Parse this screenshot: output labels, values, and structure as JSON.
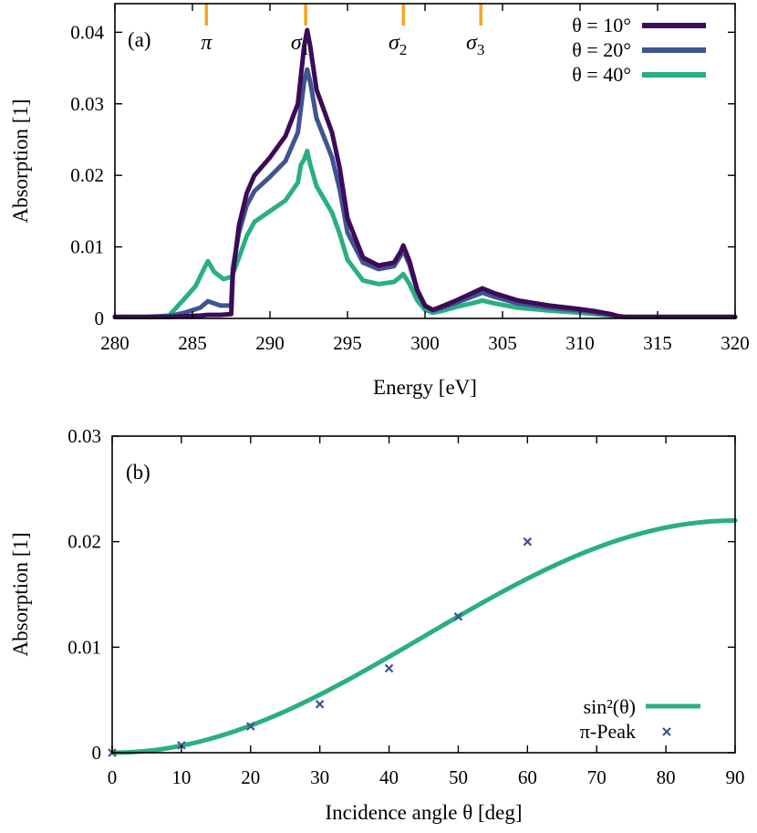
{
  "colors": {
    "theta_10": "#3d0b57",
    "theta_20": "#3f5490",
    "theta_40": "#2aaf82",
    "marker": "#f5a623",
    "pi_peak": "#3f5490"
  },
  "chart_data": [
    {
      "type": "line",
      "panel_label": "(a)",
      "xlabel": "Energy [eV]",
      "ylabel": "Absorption [1]",
      "xlim": [
        280,
        320
      ],
      "ylim": [
        0,
        0.044
      ],
      "x_ticks": [
        280,
        285,
        290,
        295,
        300,
        305,
        310,
        315,
        320
      ],
      "y_ticks": [
        0,
        0.01,
        0.02,
        0.03,
        0.04
      ],
      "y_tick_labels": [
        "0",
        "0.01",
        "0.02",
        "0.03",
        "0.04"
      ],
      "legend_position": "top-right",
      "markers": [
        {
          "label": "π",
          "sub": "",
          "x": 285.9
        },
        {
          "label": "σ",
          "sub": "1",
          "x": 292.3
        },
        {
          "label": "σ",
          "sub": "2",
          "x": 298.6
        },
        {
          "label": "σ",
          "sub": "3",
          "x": 303.6
        }
      ],
      "series": [
        {
          "name": "θ = 10°",
          "x": [
            280,
            282,
            283.5,
            284.5,
            285.5,
            286,
            286.8,
            287.5,
            287.6,
            288,
            288.5,
            289,
            290,
            291,
            291.8,
            292,
            292.2,
            292.4,
            292.6,
            293,
            294,
            294.5,
            295,
            296,
            297,
            298,
            298.4,
            298.6,
            299,
            299.5,
            300,
            300.5,
            301,
            302,
            303,
            303.7,
            304.5,
            306,
            308,
            310,
            311,
            312,
            312.5,
            313,
            316,
            320
          ],
          "y": [
            0.0002,
            0.0002,
            0.0002,
            0.0003,
            0.0004,
            0.0005,
            0.0005,
            0.0006,
            0.006,
            0.013,
            0.0175,
            0.02,
            0.0225,
            0.0255,
            0.03,
            0.034,
            0.038,
            0.0403,
            0.038,
            0.032,
            0.026,
            0.021,
            0.014,
            0.0085,
            0.0074,
            0.0078,
            0.0092,
            0.0102,
            0.008,
            0.004,
            0.0018,
            0.0012,
            0.0016,
            0.0025,
            0.0035,
            0.0042,
            0.0035,
            0.0025,
            0.0018,
            0.0013,
            0.001,
            0.0006,
            0.0003,
            0.0002,
            0.0002,
            0.0002
          ]
        },
        {
          "name": "θ = 20°",
          "x": [
            280,
            282,
            283.5,
            284.5,
            285.5,
            286,
            286.8,
            287.5,
            287.6,
            288,
            288.5,
            289,
            290,
            291,
            291.8,
            292,
            292.2,
            292.4,
            292.6,
            293,
            294,
            294.5,
            295,
            296,
            297,
            298,
            298.4,
            298.6,
            299,
            299.5,
            300,
            300.5,
            301,
            302,
            303,
            303.7,
            304.5,
            306,
            308,
            310,
            311,
            312,
            312.5,
            313,
            316,
            320
          ],
          "y": [
            0.0002,
            0.0002,
            0.0003,
            0.0008,
            0.0015,
            0.0024,
            0.0018,
            0.0018,
            0.007,
            0.012,
            0.0158,
            0.0178,
            0.0198,
            0.022,
            0.026,
            0.0295,
            0.033,
            0.0348,
            0.033,
            0.028,
            0.0225,
            0.018,
            0.012,
            0.0078,
            0.0069,
            0.0073,
            0.0087,
            0.0095,
            0.0075,
            0.0038,
            0.0017,
            0.0011,
            0.0014,
            0.0022,
            0.003,
            0.0036,
            0.003,
            0.0021,
            0.0015,
            0.0011,
            0.0008,
            0.0005,
            0.0003,
            0.0002,
            0.0002,
            0.0002
          ]
        },
        {
          "name": "θ = 40°",
          "x": [
            280,
            282,
            283.5,
            284.5,
            285.2,
            285.8,
            286,
            286.4,
            287,
            287.5,
            287.6,
            288,
            288.5,
            289,
            290,
            291,
            291.8,
            292,
            292.2,
            292.4,
            292.6,
            293,
            294,
            294.5,
            295,
            296,
            297,
            298,
            298.4,
            298.6,
            299,
            299.5,
            300,
            300.5,
            301,
            302,
            303,
            303.7,
            304.5,
            306,
            308,
            310,
            311,
            312,
            312.5,
            313,
            316,
            320
          ],
          "y": [
            0.0002,
            0.0002,
            0.0004,
            0.0028,
            0.0045,
            0.0072,
            0.008,
            0.0065,
            0.0055,
            0.0058,
            0.0062,
            0.0085,
            0.0115,
            0.0135,
            0.015,
            0.0165,
            0.019,
            0.0215,
            0.0222,
            0.0234,
            0.0215,
            0.0185,
            0.0148,
            0.0118,
            0.0082,
            0.0053,
            0.0048,
            0.0051,
            0.0058,
            0.0062,
            0.0048,
            0.0025,
            0.0012,
            0.0008,
            0.001,
            0.0016,
            0.0021,
            0.0025,
            0.0021,
            0.0015,
            0.0011,
            0.0008,
            0.0006,
            0.0004,
            0.0003,
            0.0002,
            0.0002,
            0.0002
          ]
        }
      ]
    },
    {
      "type": "line",
      "panel_label": "(b)",
      "xlabel": "Incidence angle θ [deg]",
      "ylabel": "Absorption [1]",
      "xlim": [
        0,
        90
      ],
      "ylim": [
        0,
        0.03
      ],
      "x_ticks": [
        0,
        10,
        20,
        30,
        40,
        50,
        60,
        70,
        80,
        90
      ],
      "y_ticks": [
        0,
        0.01,
        0.02,
        0.03
      ],
      "y_tick_labels": [
        "0",
        "0.01",
        "0.02",
        "0.03"
      ],
      "legend_position": "bottom-right",
      "fit": {
        "name": "sin²(θ)",
        "amplitude": 0.022
      },
      "points": {
        "name": "π-Peak",
        "x": [
          0,
          10,
          20,
          30,
          40,
          50,
          60
        ],
        "y": [
          0.0,
          0.0007,
          0.0025,
          0.0046,
          0.008,
          0.0129,
          0.02
        ]
      }
    }
  ]
}
